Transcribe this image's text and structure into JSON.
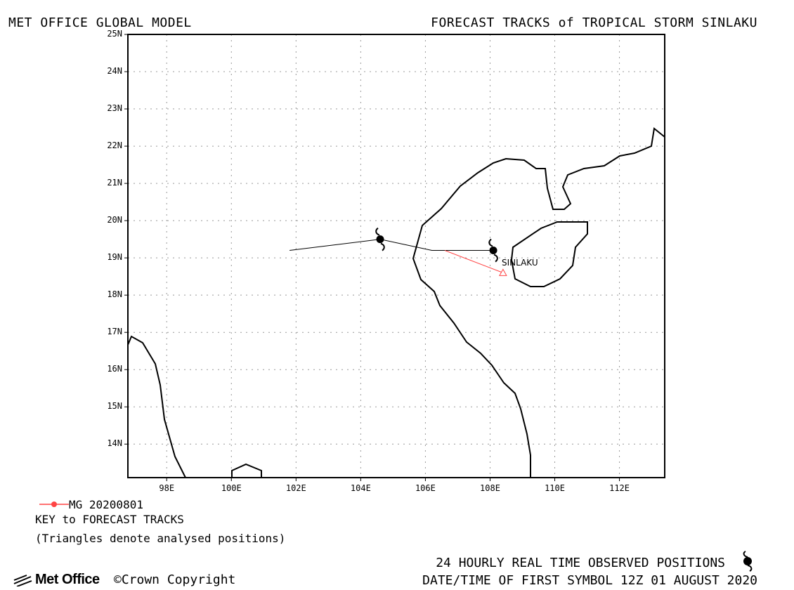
{
  "header": {
    "title_left": "MET OFFICE GLOBAL MODEL",
    "title_right": "FORECAST TRACKS of TROPICAL STORM SINLAKU"
  },
  "map": {
    "lat_range": [
      13.1,
      25
    ],
    "lon_range": [
      96.8,
      113.4
    ],
    "lat_labels": [
      "14N",
      "15N",
      "16N",
      "17N",
      "18N",
      "19N",
      "20N",
      "21N",
      "22N",
      "23N",
      "24N",
      "25N"
    ],
    "lon_labels": [
      "98E",
      "100E",
      "102E",
      "104E",
      "106E",
      "108E",
      "110E",
      "112E"
    ],
    "grid": "dotted",
    "storm_name": "SINLAKU",
    "observed_track": [
      [
        101.8,
        19.2
      ],
      [
        104.6,
        19.5
      ],
      [
        106.2,
        19.2
      ],
      [
        108.1,
        19.2
      ]
    ],
    "observed_symbols": [
      [
        104.6,
        19.5
      ],
      [
        108.1,
        19.2
      ]
    ],
    "forecast_track": {
      "run": "MG 20200801",
      "color": "#ff4444",
      "points": [
        [
          106.6,
          19.2
        ],
        [
          108.4,
          18.6
        ]
      ]
    }
  },
  "key": {
    "run_label": "MG 20200801",
    "title": "KEY to FORECAST TRACKS",
    "note": "(Triangles denote analysed positions)"
  },
  "footer": {
    "observed_positions": "24 HOURLY REAL TIME OBSERVED POSITIONS",
    "first_symbol": "DATE/TIME OF FIRST SYMBOL 12Z 01 AUGUST 2020",
    "brand": "Met Office",
    "copyright": "©Crown Copyright"
  }
}
